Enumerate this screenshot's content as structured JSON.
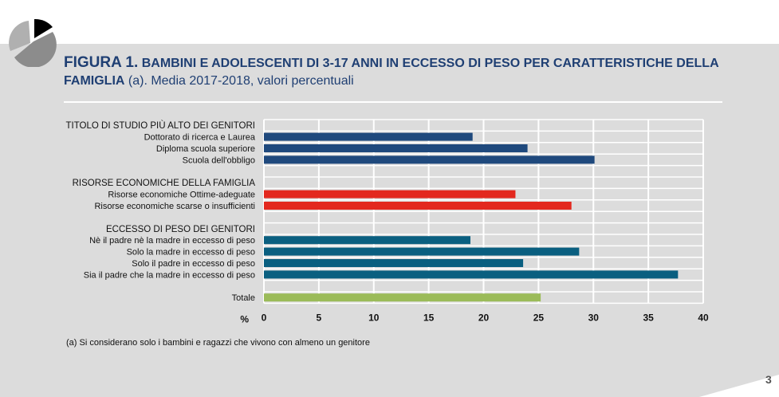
{
  "header": {
    "figure_label": "FIGURA 1.",
    "title_bold": "BAMBINI E ADOLESCENTI DI 3-17 ANNI IN ECCESSO DI PESO PER CARATTERISTICHE DELLA FAMIGLIA",
    "title_rest": " (a). Media 2017-2018,  valori percentuali"
  },
  "footnote": "(a)   Si considerano solo i bambini e ragazzi che vivono con almeno un genitore",
  "page_number": "3",
  "chart_data": {
    "type": "bar",
    "orientation": "horizontal",
    "xlabel": "%",
    "xlim": [
      0,
      40
    ],
    "xticks": [
      "0",
      "5",
      "10",
      "15",
      "20",
      "25",
      "30",
      "35",
      "40"
    ],
    "grid": true,
    "rows": [
      {
        "label": "TITOLO DI STUDIO PIÙ ALTO DEI GENITORI",
        "group_header": true
      },
      {
        "label": "Dottorato di ricerca e Laurea",
        "value": 19.0,
        "color": "#1f497d"
      },
      {
        "label": "Diploma scuola superiore",
        "value": 24.0,
        "color": "#1f497d"
      },
      {
        "label": "Scuola dell'obbligo",
        "value": 30.1,
        "color": "#1f497d"
      },
      {
        "label": ""
      },
      {
        "label": "RISORSE ECONOMICHE DELLA FAMIGLIA",
        "group_header": true
      },
      {
        "label": "Risorse economiche Ottime-adeguate",
        "value": 22.9,
        "color": "#e3281e"
      },
      {
        "label": "Risorse economiche scarse o insufficienti",
        "value": 28.0,
        "color": "#e3281e"
      },
      {
        "label": ""
      },
      {
        "label": "ECCESSO DI PESO DEI GENITORI",
        "group_header": true
      },
      {
        "label": "Nè il padre nè la madre in eccesso di peso",
        "value": 18.8,
        "color": "#0a5f80"
      },
      {
        "label": "Solo la madre in eccesso di peso",
        "value": 28.7,
        "color": "#0a5f80"
      },
      {
        "label": "Solo il padre in eccesso di peso",
        "value": 23.6,
        "color": "#0a5f80"
      },
      {
        "label": "Sia il padre che la madre in eccesso di peso",
        "value": 37.7,
        "color": "#0a5f80"
      },
      {
        "label": ""
      },
      {
        "label": "Totale",
        "value": 25.2,
        "color": "#9bbb59"
      }
    ]
  }
}
